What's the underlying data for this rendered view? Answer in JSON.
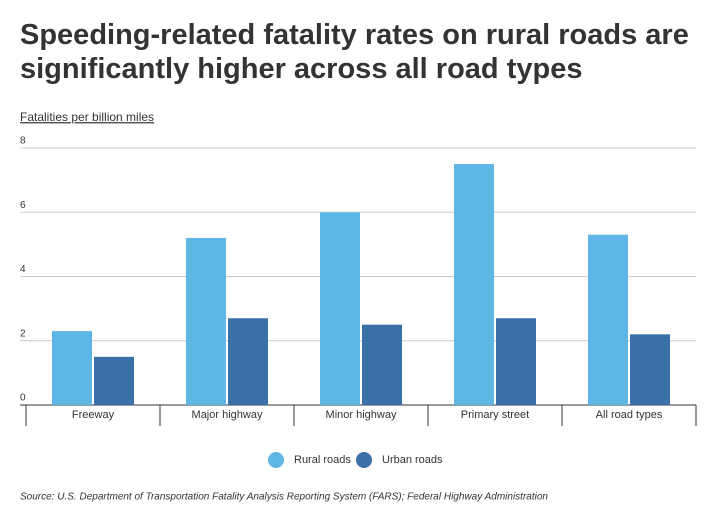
{
  "chart_data": {
    "type": "bar",
    "title": "Speeding-related fatality rates on rural roads are significantly higher across all road types",
    "y_label": "Fatalities per billion miles",
    "source": "Source: U.S. Department of Transportation Fatality Analysis Reporting System (FARS); Federal Highway Administration",
    "categories": [
      "Freeway",
      "Major highway",
      "Minor highway",
      "Primary street",
      "All road types"
    ],
    "series": [
      {
        "name": "Rural roads",
        "color": "#5db6e4",
        "values": [
          2.3,
          5.2,
          6.0,
          7.5,
          5.3
        ]
      },
      {
        "name": "Urban roads",
        "color": "#3a70a8",
        "values": [
          1.5,
          2.7,
          2.5,
          2.7,
          2.2
        ]
      }
    ],
    "ylim": [
      0,
      8
    ],
    "yticks": [
      0,
      2,
      4,
      6,
      8
    ],
    "grid": true
  }
}
